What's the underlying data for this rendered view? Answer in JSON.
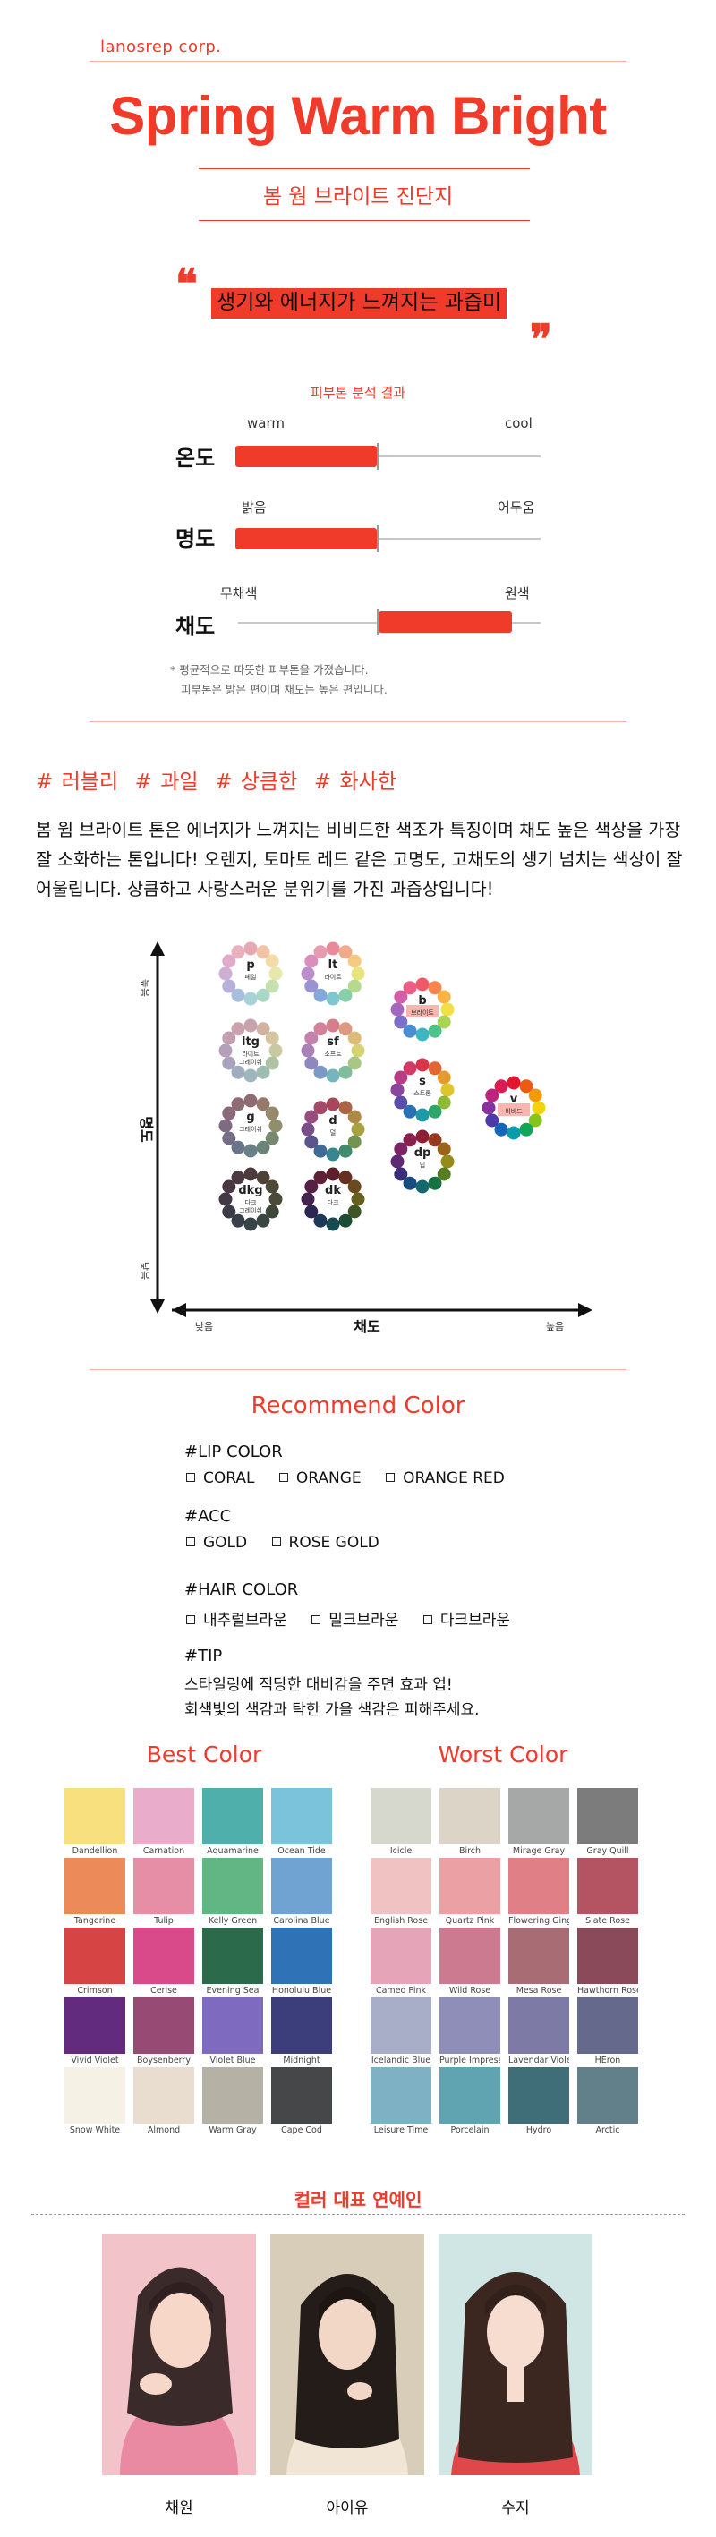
{
  "header": {
    "brand": "lanosrep corp.",
    "title": "Spring Warm Bright",
    "subtitle": "봄 웜 브라이트 진단지"
  },
  "quote": {
    "open_mark": "❝",
    "text": "생기와 에너지가 느껴지는 과즙미",
    "close_mark": "❞"
  },
  "analysis": {
    "label": "피부톤 분석 결과",
    "rows": [
      {
        "name": "온도",
        "left": "warm",
        "right": "cool",
        "value_side": "left",
        "fill_fraction": 0.5
      },
      {
        "name": "명도",
        "left": "밝음",
        "right": "어두움",
        "value_side": "left",
        "fill_fraction": 0.5
      },
      {
        "name": "채도",
        "left": "무채색",
        "right": "원색",
        "value_side": "right",
        "fill_fraction": 0.47
      }
    ],
    "note_lines": [
      "* 평균적으로 따뜻한 피부톤을 가졌습니다.",
      "피부톤은 밝은 편이며 채도는 높은 편입니다."
    ]
  },
  "hashtags": "# 러블리  # 과일  # 상큼한  # 화사한",
  "description": "봄 웜 브라이트 톤은 에너지가 느껴지는 비비드한 색조가 특징이며 채도 높은 색상을 가장 잘 소화하는 톤입니다! 오렌지, 토마토 레드 같은 고명도, 고채도의 생기 넘치는 색상이 잘 어울립니다. 상큼하고 사랑스러운 분위기를 가진 과즙상입니다!",
  "tone_map": {
    "y_axis": "명도",
    "y_top": "높음",
    "y_bottom": "낮음",
    "x_axis": "채도",
    "x_left": "낮음",
    "x_right": "높음",
    "highlight_color": "#f7b7b0",
    "wheels": [
      {
        "code": "p",
        "name": "페일"
      },
      {
        "code": "lt",
        "name": "라이트"
      },
      {
        "code": "b",
        "name": "브라이트",
        "highlight": true
      },
      {
        "code": "ltg",
        "name": "라이트 그레이쉬"
      },
      {
        "code": "sf",
        "name": "소프트"
      },
      {
        "code": "s",
        "name": "스트롱"
      },
      {
        "code": "v",
        "name": "비비드",
        "highlight": true
      },
      {
        "code": "g",
        "name": "그레이쉬"
      },
      {
        "code": "d",
        "name": "덜"
      },
      {
        "code": "dp",
        "name": "딥"
      },
      {
        "code": "dkg",
        "name": "다크 그레이쉬"
      },
      {
        "code": "dk",
        "name": "다크"
      }
    ]
  },
  "recommend": {
    "title": "Recommend Color",
    "lip": {
      "head": "#LIP COLOR",
      "items": [
        "CORAL",
        "ORANGE",
        "ORANGE RED"
      ]
    },
    "acc": {
      "head": "#ACC",
      "items": [
        "GOLD",
        "ROSE GOLD"
      ]
    },
    "hair": {
      "head": "#HAIR COLOR",
      "items": [
        "내추럴브라운",
        "밀크브라운",
        "다크브라운"
      ]
    },
    "tip": {
      "head": "#TIP",
      "lines": [
        "스타일링에 적당한 대비감을 주면 효과 업!",
        "회색빛의 색감과 탁한 가을 색감은 피해주세요."
      ]
    }
  },
  "best": {
    "title": "Best Color",
    "colors": [
      {
        "name": "Dandellion",
        "hex": "#f8e07e"
      },
      {
        "name": "Carnation",
        "hex": "#eaaccb"
      },
      {
        "name": "Aquamarine",
        "hex": "#4fb0ab"
      },
      {
        "name": "Ocean Tide",
        "hex": "#7bc3da"
      },
      {
        "name": "Tangerine",
        "hex": "#ec8a5a"
      },
      {
        "name": "Tulip",
        "hex": "#e58ea5"
      },
      {
        "name": "Kelly Green",
        "hex": "#62b683"
      },
      {
        "name": "Carolina Blue",
        "hex": "#70a2d2"
      },
      {
        "name": "Crimson",
        "hex": "#d64544"
      },
      {
        "name": "Cerise",
        "hex": "#d84a8a"
      },
      {
        "name": "Evening Sea",
        "hex": "#2b6b4b"
      },
      {
        "name": "Honolulu Blue",
        "hex": "#2f72b5"
      },
      {
        "name": "Vivid Violet",
        "hex": "#632b7e"
      },
      {
        "name": "Boysenberry",
        "hex": "#974a73"
      },
      {
        "name": "Violet Blue",
        "hex": "#7e6bbf"
      },
      {
        "name": "Midnight",
        "hex": "#3b3e7a"
      },
      {
        "name": "Snow White",
        "hex": "#f5f1e5"
      },
      {
        "name": "Almond",
        "hex": "#e9ddd0"
      },
      {
        "name": "Warm Gray",
        "hex": "#b5b1a4"
      },
      {
        "name": "Cape Cod",
        "hex": "#454749"
      }
    ]
  },
  "worst": {
    "title": "Worst Color",
    "colors": [
      {
        "name": "Icicle",
        "hex": "#d7d8cd"
      },
      {
        "name": "Birch",
        "hex": "#ddd4c8"
      },
      {
        "name": "Mirage Gray",
        "hex": "#a6a8a7"
      },
      {
        "name": "Gray Quill",
        "hex": "#7d7c7d"
      },
      {
        "name": "English Rose",
        "hex": "#f1c2c2"
      },
      {
        "name": "Quartz Pink",
        "hex": "#eba0a4"
      },
      {
        "name": "Flowering Ginger",
        "hex": "#e07f85"
      },
      {
        "name": "Slate Rose",
        "hex": "#b45463"
      },
      {
        "name": "Cameo Pink",
        "hex": "#e6a4b9"
      },
      {
        "name": "Wild Rose",
        "hex": "#cc7a8f"
      },
      {
        "name": "Mesa Rose",
        "hex": "#a76c74"
      },
      {
        "name": "Hawthorn Rose",
        "hex": "#8a4a5a"
      },
      {
        "name": "Icelandic Blue",
        "hex": "#a9aec8"
      },
      {
        "name": "Purple Impression",
        "hex": "#8f8eb8"
      },
      {
        "name": "Lavendar Violet",
        "hex": "#7d7aa6"
      },
      {
        "name": "HEron",
        "hex": "#65698b"
      },
      {
        "name": "Leisure Time",
        "hex": "#7fb1c4"
      },
      {
        "name": "Porcelain",
        "hex": "#60a4b2"
      },
      {
        "name": "Hydro",
        "hex": "#3f6e78"
      },
      {
        "name": "Arctic",
        "hex": "#618089"
      }
    ]
  },
  "celebrities": {
    "title": "컬러 대표 연예인",
    "people": [
      {
        "name": "채원"
      },
      {
        "name": "아이유"
      },
      {
        "name": "수지"
      }
    ]
  },
  "colors": {
    "accent": "#f03a2a"
  }
}
